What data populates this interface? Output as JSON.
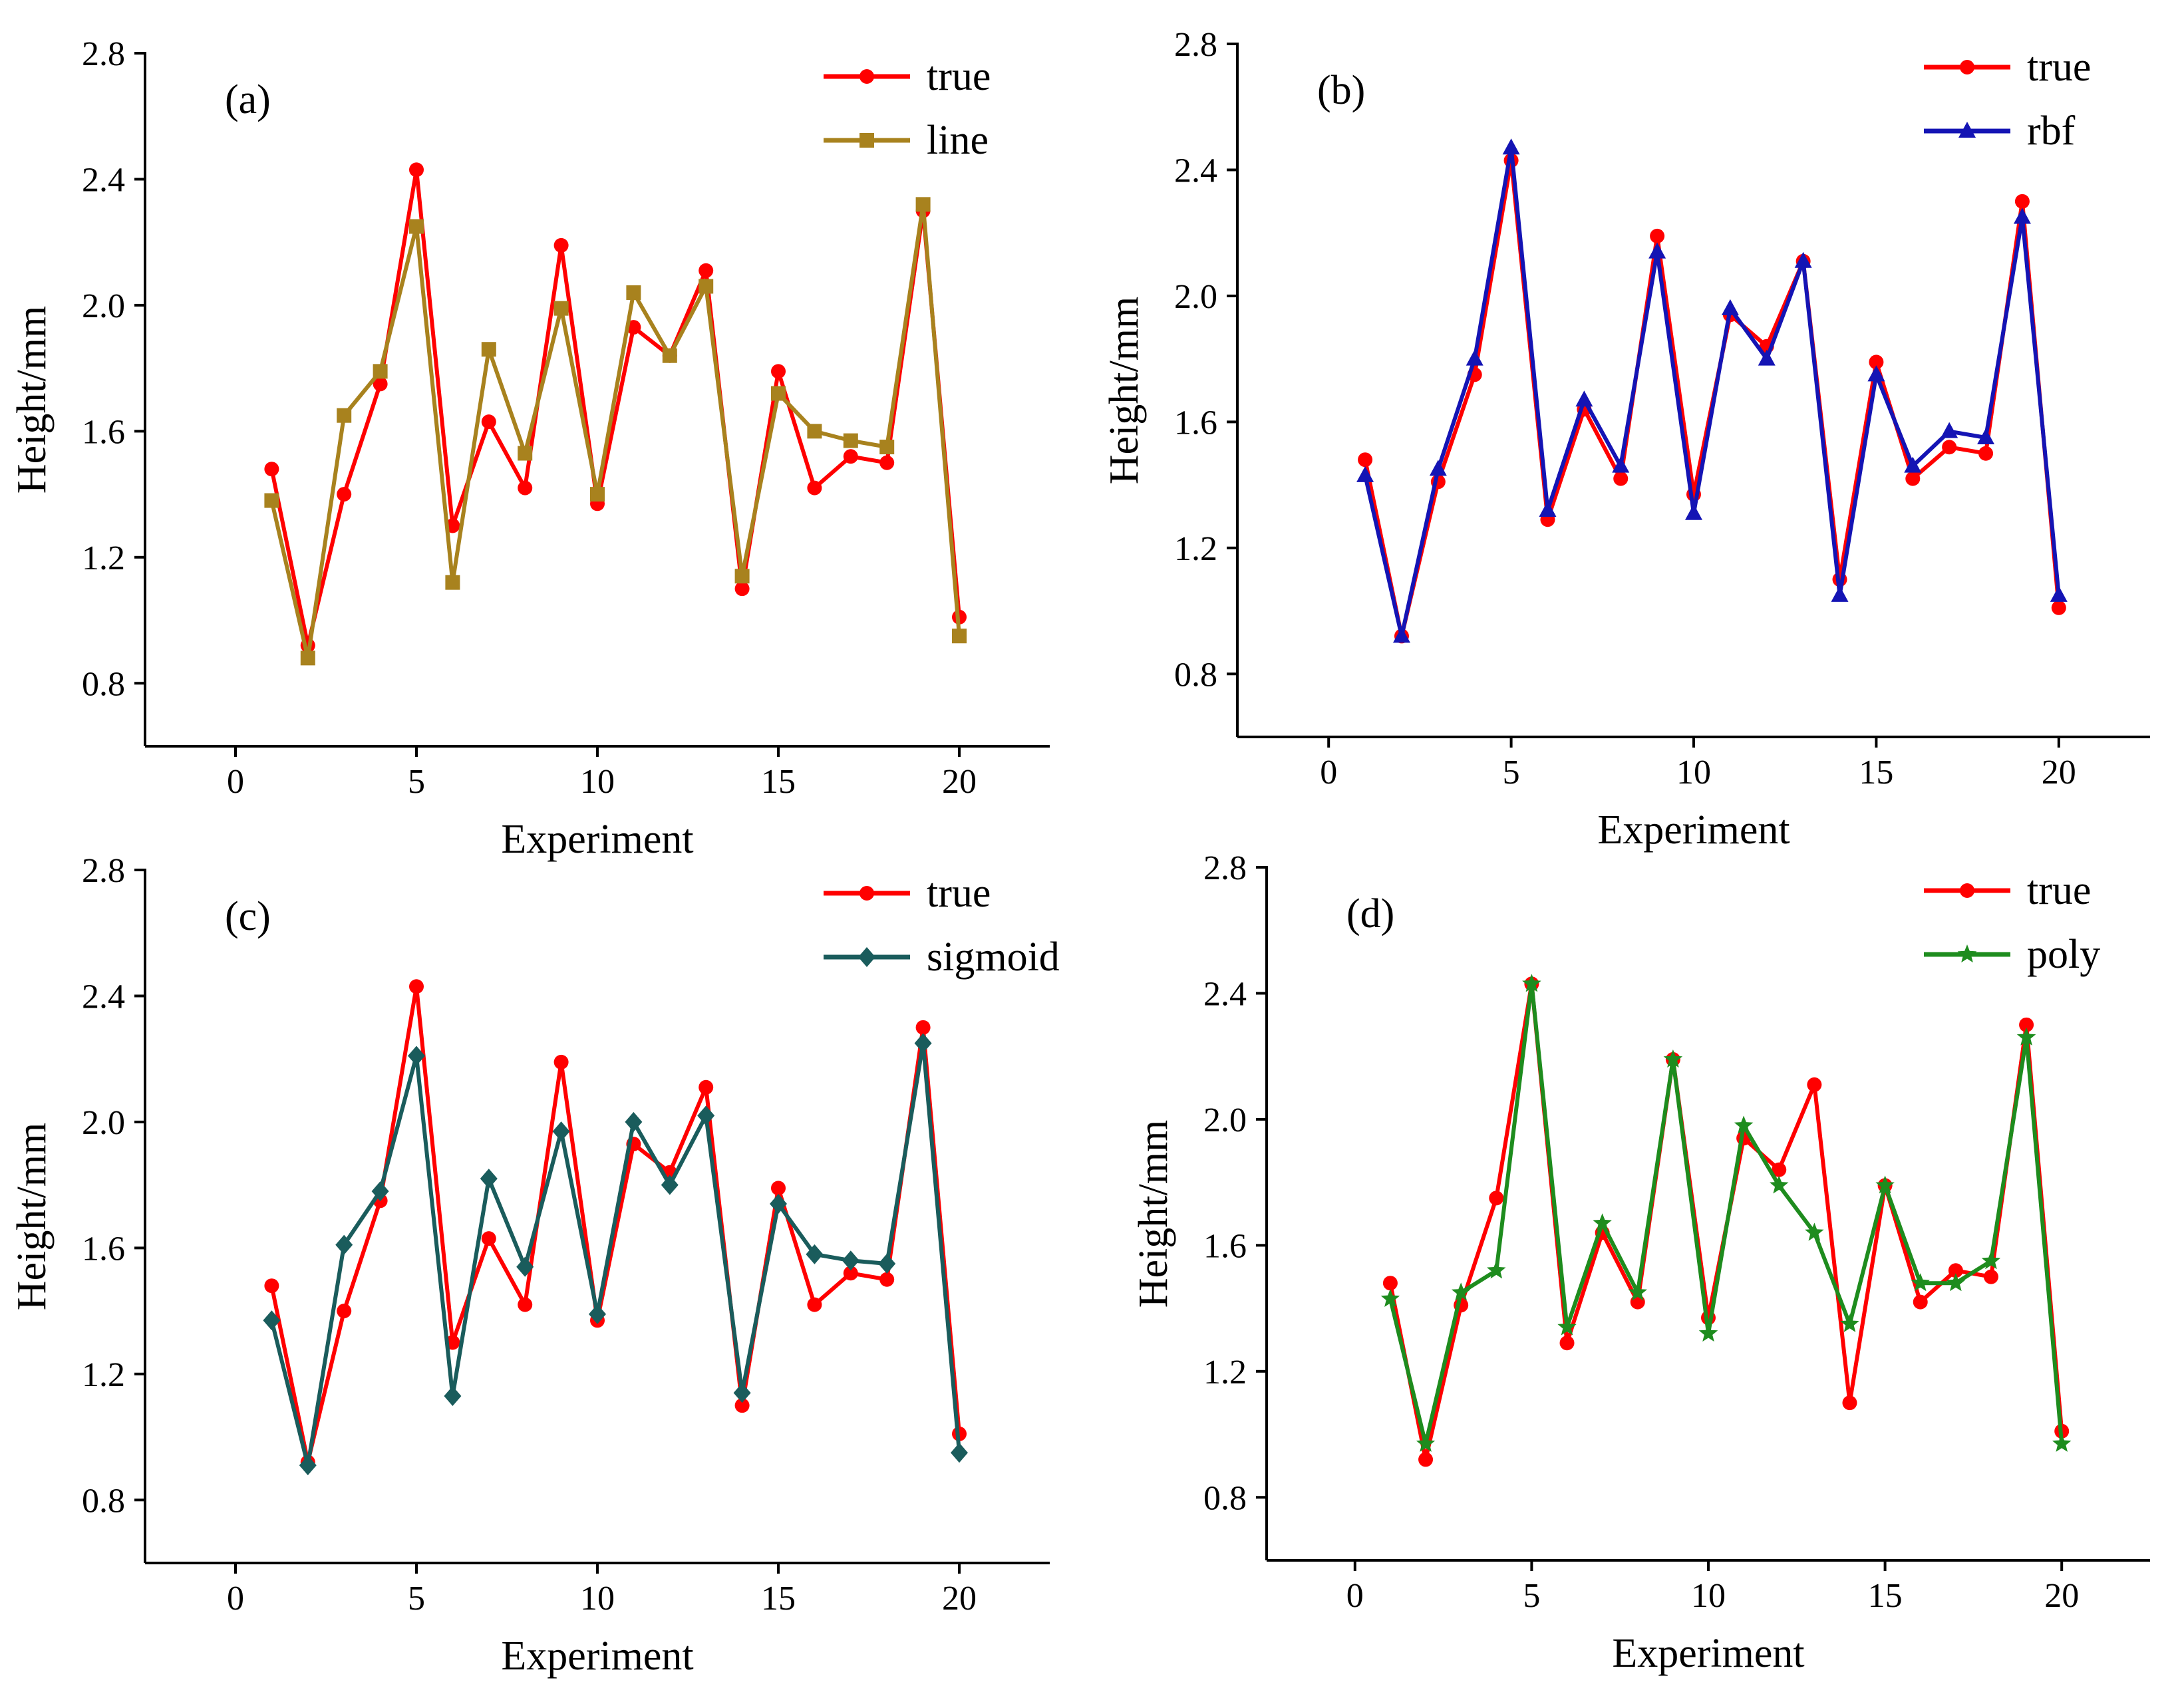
{
  "chart_data": [
    {
      "type": "line",
      "panel_label": "(a)",
      "xlabel": "Experiment",
      "ylabel": "Height/mm",
      "xlim": [
        -2.5,
        22.5
      ],
      "ylim": [
        0.6,
        2.8
      ],
      "xticks": [
        0,
        5,
        10,
        15,
        20
      ],
      "yticks": [
        0.8,
        1.2,
        1.6,
        2.0,
        2.4,
        2.8
      ],
      "ytick_labels": [
        "0.8",
        "1.2",
        "1.6",
        "2.0",
        "2.4",
        "2.8"
      ],
      "legend_position": "top-right",
      "x": [
        1,
        2,
        3,
        4,
        5,
        6,
        7,
        8,
        9,
        10,
        11,
        12,
        13,
        14,
        15,
        16,
        17,
        18,
        19,
        20
      ],
      "series": [
        {
          "name": "true",
          "color": "#ff0000",
          "marker": "circle",
          "values": [
            1.48,
            0.92,
            1.4,
            1.75,
            2.43,
            1.3,
            1.63,
            1.42,
            2.19,
            1.37,
            1.93,
            1.84,
            2.11,
            1.1,
            1.79,
            1.42,
            1.52,
            1.5,
            2.3,
            1.01
          ]
        },
        {
          "name": "line",
          "color": "#a8821e",
          "marker": "square",
          "values": [
            1.38,
            0.88,
            1.65,
            1.79,
            2.25,
            1.12,
            1.86,
            1.53,
            1.99,
            1.4,
            2.04,
            1.84,
            2.06,
            1.14,
            1.72,
            1.6,
            1.57,
            1.55,
            2.32,
            0.95
          ]
        }
      ]
    },
    {
      "type": "line",
      "panel_label": "(b)",
      "xlabel": "Experiment",
      "ylabel": "Height/mm",
      "xlim": [
        -2.5,
        22.5
      ],
      "ylim": [
        0.6,
        2.8
      ],
      "xticks": [
        0,
        5,
        10,
        15,
        20
      ],
      "yticks": [
        0.8,
        1.2,
        1.6,
        2.0,
        2.4,
        2.8
      ],
      "ytick_labels": [
        "0.8",
        "1.2",
        "1.6",
        "2.0",
        "2.4",
        "2.8"
      ],
      "legend_position": "top-right",
      "x": [
        1,
        2,
        3,
        4,
        5,
        6,
        7,
        8,
        9,
        10,
        11,
        12,
        13,
        14,
        15,
        16,
        17,
        18,
        19,
        20
      ],
      "series": [
        {
          "name": "true",
          "color": "#ff0000",
          "marker": "circle",
          "values": [
            1.48,
            0.92,
            1.41,
            1.75,
            2.43,
            1.29,
            1.64,
            1.42,
            2.19,
            1.37,
            1.94,
            1.84,
            2.11,
            1.1,
            1.79,
            1.42,
            1.52,
            1.5,
            2.3,
            1.01
          ]
        },
        {
          "name": "rbf",
          "color": "#1414b4",
          "marker": "triangle",
          "values": [
            1.43,
            0.92,
            1.45,
            1.8,
            2.47,
            1.32,
            1.67,
            1.46,
            2.14,
            1.31,
            1.96,
            1.8,
            2.11,
            1.05,
            1.75,
            1.46,
            1.57,
            1.55,
            2.25,
            1.05
          ]
        }
      ]
    },
    {
      "type": "line",
      "panel_label": "(c)",
      "xlabel": "Experiment",
      "ylabel": "Height/mm",
      "xlim": [
        -2.5,
        22.5
      ],
      "ylim": [
        0.6,
        2.8
      ],
      "xticks": [
        0,
        5,
        10,
        15,
        20
      ],
      "yticks": [
        0.8,
        1.2,
        1.6,
        2.0,
        2.4,
        2.8
      ],
      "ytick_labels": [
        "0.8",
        "1.2",
        "1.6",
        "2.0",
        "2.4",
        "2.8"
      ],
      "legend_position": "top-right",
      "x": [
        1,
        2,
        3,
        4,
        5,
        6,
        7,
        8,
        9,
        10,
        11,
        12,
        13,
        14,
        15,
        16,
        17,
        18,
        19,
        20
      ],
      "series": [
        {
          "name": "true",
          "color": "#ff0000",
          "marker": "circle",
          "values": [
            1.48,
            0.92,
            1.4,
            1.75,
            2.43,
            1.3,
            1.63,
            1.42,
            2.19,
            1.37,
            1.93,
            1.84,
            2.11,
            1.1,
            1.79,
            1.42,
            1.52,
            1.5,
            2.3,
            1.01
          ]
        },
        {
          "name": "sigmoid",
          "color": "#1a5c5c",
          "marker": "diamond",
          "values": [
            1.37,
            0.91,
            1.61,
            1.78,
            2.21,
            1.13,
            1.82,
            1.54,
            1.97,
            1.39,
            2.0,
            1.8,
            2.02,
            1.14,
            1.74,
            1.58,
            1.56,
            1.55,
            2.25,
            0.95
          ]
        }
      ]
    },
    {
      "type": "line",
      "panel_label": "(d)",
      "xlabel": "Experiment",
      "ylabel": "Height/mm",
      "xlim": [
        -2.5,
        22.5
      ],
      "ylim": [
        0.6,
        2.8
      ],
      "xticks": [
        0,
        5,
        10,
        15,
        20
      ],
      "yticks": [
        0.8,
        1.2,
        1.6,
        2.0,
        2.4,
        2.8
      ],
      "ytick_labels": [
        "0.8",
        "1.2",
        "1.6",
        "2.0",
        "2.4",
        "2.8"
      ],
      "legend_position": "top-right",
      "x": [
        1,
        2,
        3,
        4,
        5,
        6,
        7,
        8,
        9,
        10,
        11,
        12,
        13,
        14,
        15,
        16,
        17,
        18,
        19,
        20
      ],
      "series": [
        {
          "name": "true",
          "color": "#ff0000",
          "marker": "circle",
          "values": [
            1.48,
            0.92,
            1.41,
            1.75,
            2.43,
            1.29,
            1.64,
            1.42,
            2.19,
            1.37,
            1.94,
            1.84,
            2.11,
            1.1,
            1.79,
            1.42,
            1.52,
            1.5,
            2.3,
            1.01
          ]
        },
        {
          "name": "poly",
          "color": "#1e8c1e",
          "marker": "star",
          "values": [
            1.43,
            0.97,
            1.45,
            1.52,
            2.43,
            1.34,
            1.67,
            1.45,
            2.19,
            1.32,
            1.98,
            1.79,
            1.64,
            1.35,
            1.79,
            1.48,
            1.48,
            1.55,
            2.26,
            0.97
          ]
        }
      ]
    }
  ]
}
